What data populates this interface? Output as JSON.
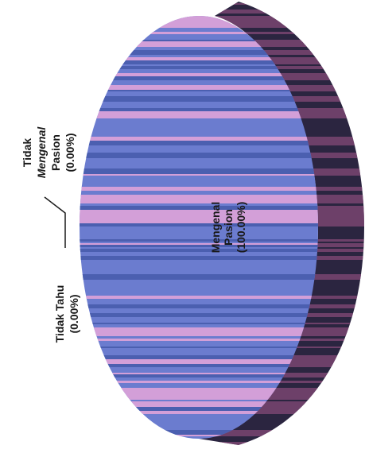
{
  "chart_data": {
    "type": "pie",
    "title": "",
    "slices": [
      {
        "label_lines": [
          "Mengenal",
          "Pasion",
          "(100.00%)"
        ],
        "value": 100.0
      },
      {
        "label_lines": [
          "Tidak",
          "Mengenal",
          "Pasion",
          "(0.00%)"
        ],
        "value": 0.0
      },
      {
        "label_lines": [
          "Tidak Tahu",
          "(0.00%)"
        ],
        "value": 0.0
      }
    ],
    "colors": {
      "stripe_a": "#6b7ccf",
      "stripe_b": "#d39fd8",
      "stripe_c": "#4b5fb0",
      "side_dark": "#2b2540",
      "side_light": "#8a4b7a"
    },
    "three_d": true,
    "rotated": "90deg"
  }
}
